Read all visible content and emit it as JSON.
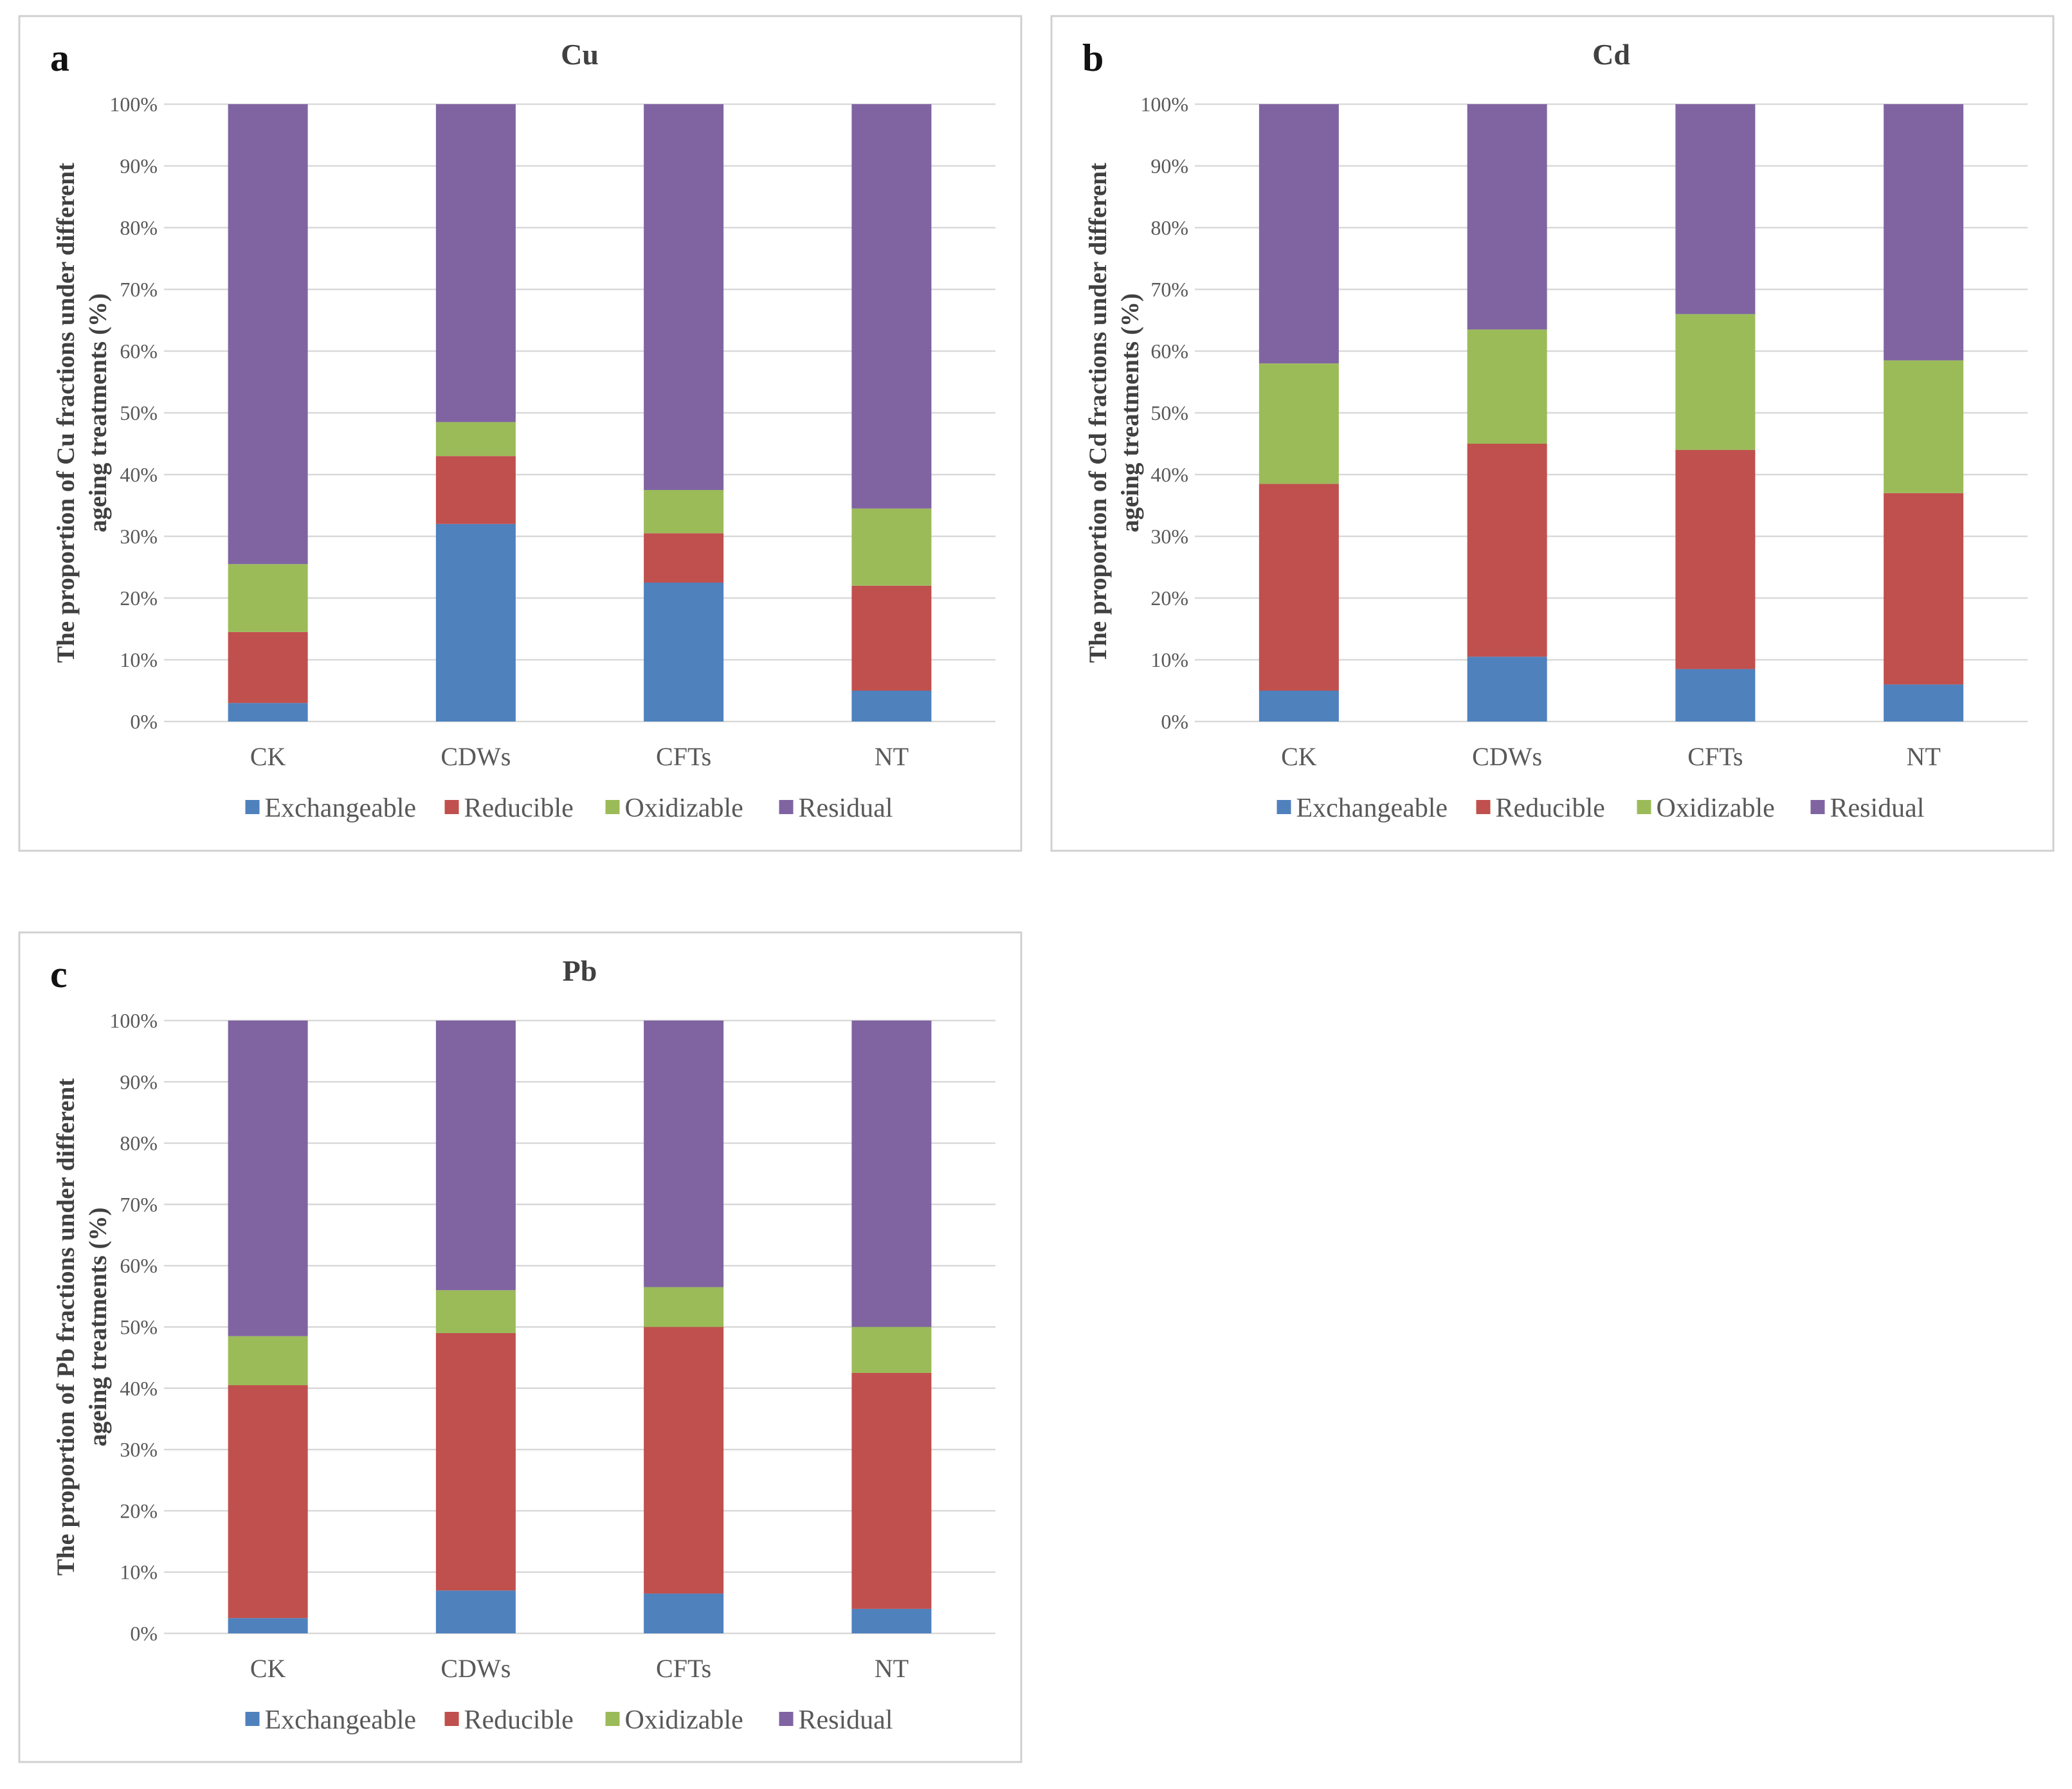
{
  "chart_data": [
    {
      "type": "bar",
      "stacked": true,
      "panel": "a",
      "title": "Cu",
      "ylabel_lines": [
        "The proportion of Cu fractions under different",
        "ageing treatments (%)"
      ],
      "categories": [
        "CK",
        "CDWs",
        "CFTs",
        "NT"
      ],
      "y_ticks": [
        "0%",
        "10%",
        "20%",
        "30%",
        "40%",
        "50%",
        "60%",
        "70%",
        "80%",
        "90%",
        "100%"
      ],
      "ylim": [
        0,
        100
      ],
      "series": [
        {
          "name": "Exchangeable",
          "color": "#4f81bd",
          "values": [
            3,
            32,
            22.5,
            5
          ]
        },
        {
          "name": "Reducible",
          "color": "#c0504d",
          "values": [
            11.5,
            11,
            8,
            17
          ]
        },
        {
          "name": "Oxidizable",
          "color": "#9bbb59",
          "values": [
            11,
            5.5,
            7,
            12.5
          ]
        },
        {
          "name": "Residual",
          "color": "#8064a2",
          "values": [
            74.5,
            51.5,
            62.5,
            65.5
          ]
        }
      ]
    },
    {
      "type": "bar",
      "stacked": true,
      "panel": "b",
      "title": "Cd",
      "ylabel_lines": [
        "The proportion of Cd fractions under different",
        "ageing treatments (%)"
      ],
      "categories": [
        "CK",
        "CDWs",
        "CFTs",
        "NT"
      ],
      "y_ticks": [
        "0%",
        "10%",
        "20%",
        "30%",
        "40%",
        "50%",
        "60%",
        "70%",
        "80%",
        "90%",
        "100%"
      ],
      "ylim": [
        0,
        100
      ],
      "series": [
        {
          "name": "Exchangeable",
          "color": "#4f81bd",
          "values": [
            5,
            10.5,
            8.5,
            6
          ]
        },
        {
          "name": "Reducible",
          "color": "#c0504d",
          "values": [
            33.5,
            34.5,
            35.5,
            31
          ]
        },
        {
          "name": "Oxidizable",
          "color": "#9bbb59",
          "values": [
            19.5,
            18.5,
            22,
            21.5
          ]
        },
        {
          "name": "Residual",
          "color": "#8064a2",
          "values": [
            42,
            36.5,
            34,
            41.5
          ]
        }
      ]
    },
    {
      "type": "bar",
      "stacked": true,
      "panel": "c",
      "title": "Pb",
      "ylabel_lines": [
        "The proportion of Pb fractions under different",
        "ageing treatments (%)"
      ],
      "categories": [
        "CK",
        "CDWs",
        "CFTs",
        "NT"
      ],
      "y_ticks": [
        "0%",
        "10%",
        "20%",
        "30%",
        "40%",
        "50%",
        "60%",
        "70%",
        "80%",
        "90%",
        "100%"
      ],
      "ylim": [
        0,
        100
      ],
      "series": [
        {
          "name": "Exchangeable",
          "color": "#4f81bd",
          "values": [
            2.5,
            7,
            6.5,
            4
          ]
        },
        {
          "name": "Reducible",
          "color": "#c0504d",
          "values": [
            38,
            42,
            43.5,
            38.5
          ]
        },
        {
          "name": "Oxidizable",
          "color": "#9bbb59",
          "values": [
            8,
            7,
            6.5,
            7.5
          ]
        },
        {
          "name": "Residual",
          "color": "#8064a2",
          "values": [
            51.5,
            44,
            43.5,
            50
          ]
        }
      ]
    }
  ]
}
